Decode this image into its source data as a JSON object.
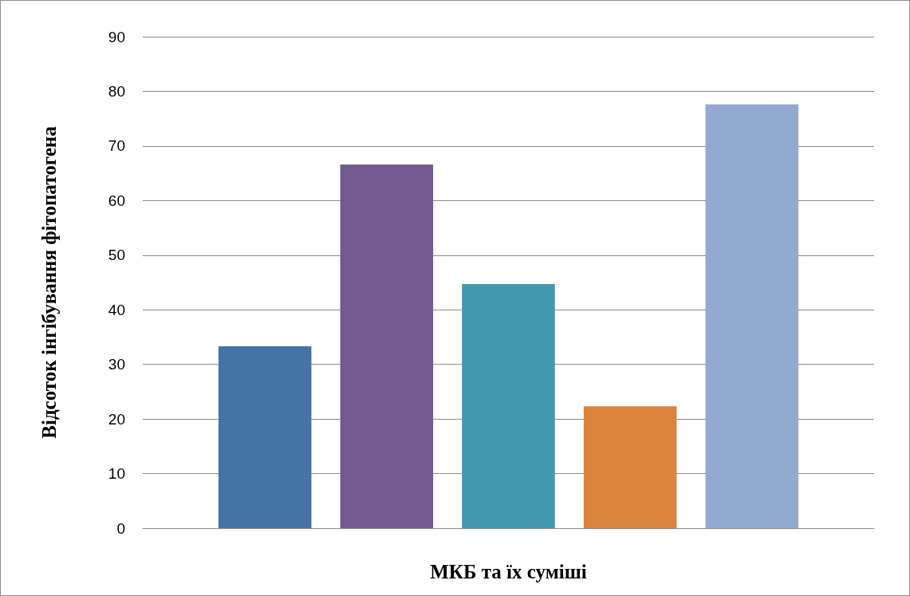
{
  "chart_data": {
    "type": "bar",
    "xlabel": "МКБ та їх суміші",
    "ylabel": "Відсоток інгібування фітопатогена",
    "categories": [
      null
    ],
    "series": [
      {
        "color": "#4573a7",
        "values": [
          33.3
        ]
      },
      {
        "color": "#71588f",
        "values": [
          66.6
        ]
      },
      {
        "color": "#4298af",
        "values": [
          44.7
        ]
      },
      {
        "color": "#db843d",
        "values": [
          22.3
        ]
      },
      {
        "color": "#93a9cf",
        "values": [
          77.6
        ]
      }
    ],
    "ylim": [
      0,
      90
    ],
    "yticks": [
      0,
      10,
      20,
      30,
      40,
      50,
      60,
      70,
      80,
      90
    ],
    "grid": "y"
  }
}
